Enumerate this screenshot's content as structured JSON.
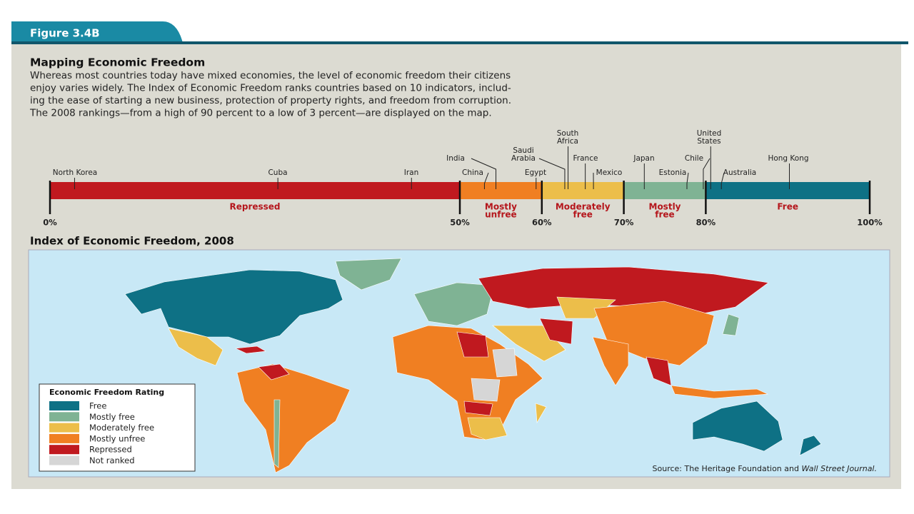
{
  "header": {
    "figure_label": "Figure 3.4B",
    "title": "Mapping Economic Freedom",
    "description_lines": [
      "Whereas most countries today have mixed economies, the level of economic freedom their citizens",
      "enjoy varies widely. The Index of Economic Freedom ranks countries based on 10 indicators, includ-",
      "ing the ease of starting a new business, protection of property rights, and freedom from corruption.",
      "The 2008 rankings—from a high of 90 percent to a low of 3 percent—are displayed on the map."
    ]
  },
  "chart_data": {
    "type": "scale",
    "xlim": [
      0,
      100
    ],
    "xticks": [
      {
        "value": 0,
        "label": "0%"
      },
      {
        "value": 50,
        "label": "50%"
      },
      {
        "value": 60,
        "label": "60%"
      },
      {
        "value": 70,
        "label": "70%"
      },
      {
        "value": 80,
        "label": "80%"
      },
      {
        "value": 100,
        "label": "100%"
      }
    ],
    "bands": [
      {
        "label": [
          "Repressed"
        ],
        "range": [
          0,
          50
        ],
        "color": "#c0191f"
      },
      {
        "label": [
          "Mostly",
          "unfree"
        ],
        "range": [
          50,
          60
        ],
        "color": "#f07f22"
      },
      {
        "label": [
          "Moderately",
          "free"
        ],
        "range": [
          60,
          70
        ],
        "color": "#ecbe4a"
      },
      {
        "label": [
          "Mostly",
          "free"
        ],
        "range": [
          70,
          80
        ],
        "color": "#7fb394"
      },
      {
        "label": [
          "Free"
        ],
        "range": [
          80,
          100
        ],
        "color": "#0e7185"
      }
    ],
    "countries": [
      {
        "label": [
          "North Korea"
        ],
        "value": 3.0
      },
      {
        "label": [
          "Cuba"
        ],
        "value": 27.8
      },
      {
        "label": [
          "Iran"
        ],
        "value": 44.1
      },
      {
        "label": [
          "China"
        ],
        "value": 53.0
      },
      {
        "label": [
          "India"
        ],
        "value": 54.4
      },
      {
        "label": [
          "Egypt"
        ],
        "value": 59.3
      },
      {
        "label": [
          "Saudi",
          "Arabia"
        ],
        "value": 62.8
      },
      {
        "label": [
          "South",
          "Africa"
        ],
        "value": 63.2
      },
      {
        "label": [
          "France"
        ],
        "value": 65.3
      },
      {
        "label": [
          "Mexico"
        ],
        "value": 66.3
      },
      {
        "label": [
          "Japan"
        ],
        "value": 72.5
      },
      {
        "label": [
          "Estonia"
        ],
        "value": 77.7
      },
      {
        "label": [
          "Chile"
        ],
        "value": 79.7
      },
      {
        "label": [
          "United",
          "States"
        ],
        "value": 80.6
      },
      {
        "label": [
          "Australia"
        ],
        "value": 81.9
      },
      {
        "label": [
          "Hong Kong"
        ],
        "value": 90.2
      }
    ]
  },
  "map": {
    "title": "Index of Economic Freedom, 2008",
    "legend_title": "Economic Freedom Rating",
    "legend": [
      {
        "name": "Free",
        "color": "#0e7185"
      },
      {
        "name": "Mostly free",
        "color": "#7fb394"
      },
      {
        "name": "Moderately free",
        "color": "#ecbe4a"
      },
      {
        "name": "Mostly unfree",
        "color": "#f07f22"
      },
      {
        "name": "Repressed",
        "color": "#c0191f"
      },
      {
        "name": "Not ranked",
        "color": "#d6d6d6"
      }
    ],
    "source": "Source: The Heritage Foundation and",
    "source_italic": "Wall Street Journal."
  }
}
